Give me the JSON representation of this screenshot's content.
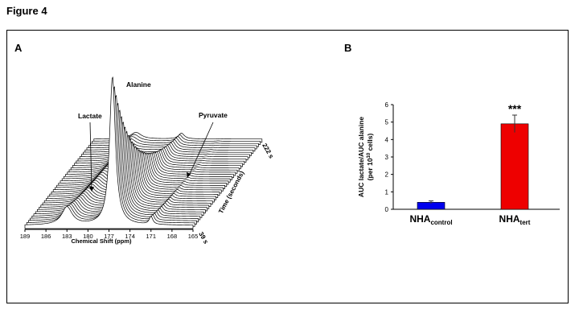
{
  "figure_title": "Figure 4",
  "panels": {
    "A": {
      "label": "A",
      "peak_labels": {
        "lactate": "Lactate",
        "alanine": "Alanine",
        "pyruvate": "Pyruvate"
      },
      "x_axis_label": "Chemical Shift (ppm)",
      "x_ticks": [
        "189",
        "186",
        "183",
        "180",
        "177",
        "174",
        "171",
        "168",
        "165"
      ],
      "time_axis_label": "Time (seconds)",
      "time_start": "39 s",
      "time_end": "222 s"
    },
    "B": {
      "label": "B"
    }
  },
  "chart_data": [
    {
      "type": "waterfall",
      "panel": "A",
      "xlabel": "Chemical Shift (ppm)",
      "xlim": [
        189,
        165
      ],
      "x_reversed": true,
      "zlabel": "Time (seconds)",
      "zlim": [
        39,
        222
      ],
      "peaks": [
        {
          "label": "Lactate",
          "ppm": 183,
          "relative_height": 0.22
        },
        {
          "label": "Alanine",
          "ppm": 176.5,
          "relative_height": 1.0
        },
        {
          "label": "Pyruvate",
          "ppm": 171,
          "relative_height": 0.06
        }
      ]
    },
    {
      "type": "bar",
      "panel": "B",
      "categories": [
        {
          "main": "NHA",
          "sub": "control"
        },
        {
          "main": "NHA",
          "sub": "tert"
        }
      ],
      "values": [
        0.4,
        4.9
      ],
      "errors": [
        0.08,
        0.5
      ],
      "colors": [
        "#0000ee",
        "#ee0000"
      ],
      "significance": [
        "",
        "***"
      ],
      "ylabel_line1": "AUC lactate/AUC alanine",
      "ylabel_line2": {
        "prefix": "(per 10",
        "sup": "10",
        "suffix": " cells)"
      },
      "yticks": [
        "0",
        "1",
        "2",
        "3",
        "4",
        "5",
        "6"
      ],
      "ylim": [
        0,
        6
      ]
    }
  ]
}
